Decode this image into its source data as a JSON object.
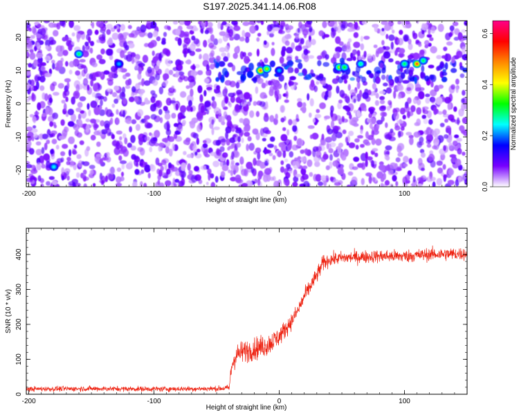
{
  "title": "S197.2025.341.14.06.R08",
  "chart_data": [
    {
      "type": "heatmap",
      "xlabel": "Height of straight line (km)",
      "ylabel": "Frequency (Hz)",
      "xlim": [
        -202,
        150
      ],
      "ylim": [
        -25,
        25
      ],
      "xticks": [
        -200,
        -100,
        0,
        100
      ],
      "xtick_labels": [
        "-200",
        "-100",
        "0",
        "100"
      ],
      "yticks": [
        -20,
        -10,
        0,
        10,
        20
      ],
      "ytick_labels": [
        "-20",
        "-10",
        "0",
        "10",
        "20"
      ],
      "band": {
        "frequency": 10,
        "x_start": -50,
        "x_end": 150
      },
      "hotspots": [
        {
          "x": -160,
          "y": 15,
          "value": 0.3
        },
        {
          "x": -180,
          "y": -19,
          "value": 0.25
        },
        {
          "x": -128,
          "y": 12,
          "value": 0.22
        },
        {
          "x": -15,
          "y": 10,
          "value": 0.5
        },
        {
          "x": -10,
          "y": 10.5,
          "value": 0.38
        },
        {
          "x": 0,
          "y": 10,
          "value": 0.22
        },
        {
          "x": 48,
          "y": 11,
          "value": 0.38
        },
        {
          "x": 52,
          "y": 11,
          "value": 0.32
        },
        {
          "x": 65,
          "y": 12,
          "value": 0.28
        },
        {
          "x": 100,
          "y": 12,
          "value": 0.3
        },
        {
          "x": 110,
          "y": 12,
          "value": 0.52
        },
        {
          "x": 115,
          "y": 13,
          "value": 0.3
        }
      ],
      "colorbar": {
        "label": "Normalized spectral amplitude",
        "range": [
          0.0,
          0.65
        ],
        "ticks": [
          0.0,
          0.2,
          0.4,
          0.6
        ],
        "tick_labels": [
          "0.0",
          "0.2",
          "0.4",
          "0.6"
        ],
        "colors": [
          "#ffffff",
          "#7700ff",
          "#0000ff",
          "#00ffff",
          "#00ff00",
          "#ffff00",
          "#ff8800",
          "#ff0000",
          "#ff0088"
        ]
      }
    },
    {
      "type": "line",
      "xlabel": "Height of straight line (km)",
      "ylabel": "SNR (10 * v/v)",
      "xlim": [
        -202,
        150
      ],
      "ylim": [
        0,
        475
      ],
      "xticks": [
        -200,
        -100,
        0,
        100
      ],
      "xtick_labels": [
        "-200",
        "-100",
        "0",
        "100"
      ],
      "yticks": [
        0,
        100,
        200,
        300,
        400
      ],
      "ytick_labels": [
        "0",
        "100",
        "200",
        "300",
        "400"
      ],
      "line_color": "#ee2211",
      "x": [
        -202,
        -150,
        -100,
        -50,
        -40,
        -38,
        -35,
        -30,
        -20,
        -10,
        0,
        10,
        15,
        20,
        25,
        30,
        35,
        40,
        50,
        60,
        80,
        100,
        120,
        150
      ],
      "y": [
        15,
        16,
        15,
        16,
        18,
        80,
        110,
        120,
        130,
        140,
        165,
        210,
        240,
        280,
        310,
        340,
        375,
        385,
        390,
        392,
        395,
        395,
        400,
        402
      ],
      "noise_amplitude": [
        8,
        8,
        8,
        8,
        10,
        30,
        35,
        35,
        35,
        35,
        30,
        25,
        25,
        25,
        25,
        25,
        25,
        20,
        20,
        20,
        20,
        20,
        20,
        20
      ]
    }
  ]
}
